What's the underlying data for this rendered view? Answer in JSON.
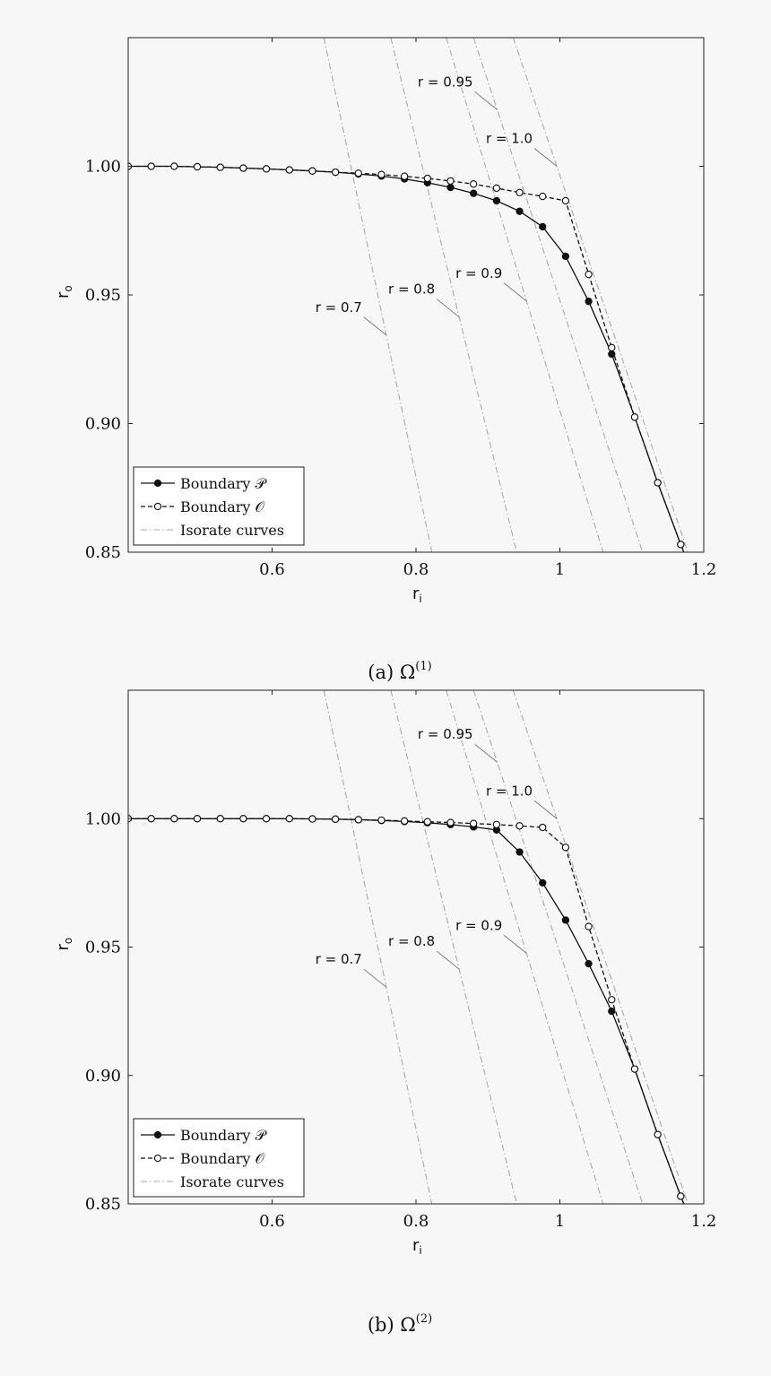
{
  "chart_data": [
    {
      "type": "line",
      "caption": "(a) Ω",
      "caption_sup": "(1)",
      "xlabel": "r",
      "xlabel_sub": "i",
      "ylabel": "r",
      "ylabel_sub": "o",
      "xlim": [
        0.4,
        1.2
      ],
      "ylim": [
        0.85,
        1.05
      ],
      "xticks": [
        {
          "v": 0.6,
          "label": "0.6"
        },
        {
          "v": 0.8,
          "label": "0.8"
        },
        {
          "v": 1.0,
          "label": "1"
        },
        {
          "v": 1.2,
          "label": "1.2"
        }
      ],
      "yticks": [
        {
          "v": 0.85,
          "label": "0.85"
        },
        {
          "v": 0.9,
          "label": "0.90"
        },
        {
          "v": 0.95,
          "label": "0.95"
        },
        {
          "v": 1.0,
          "label": "1.00"
        }
      ],
      "grid": false,
      "legend_position": "bottom-left",
      "series": [
        {
          "name": "Boundary 𝒫",
          "style": "solid-filled",
          "x": [
            0.4,
            0.432,
            0.464,
            0.496,
            0.528,
            0.56,
            0.592,
            0.624,
            0.656,
            0.688,
            0.72,
            0.752,
            0.784,
            0.816,
            0.848,
            0.88,
            0.912,
            0.944,
            0.976,
            1.008,
            1.04,
            1.072,
            1.104,
            1.136,
            1.168,
            1.176
          ],
          "y": [
            1.0,
            1.0,
            1.0,
            0.9998,
            0.9996,
            0.9993,
            0.999,
            0.9986,
            0.9982,
            0.9977,
            0.997,
            0.9962,
            0.9951,
            0.9936,
            0.9918,
            0.9895,
            0.9866,
            0.9825,
            0.9765,
            0.965,
            0.9475,
            0.927,
            0.9025,
            0.877,
            0.853,
            0.8475
          ]
        },
        {
          "name": "Boundary 𝒪",
          "style": "dashed-open",
          "x": [
            0.4,
            0.432,
            0.464,
            0.496,
            0.528,
            0.56,
            0.592,
            0.624,
            0.656,
            0.688,
            0.72,
            0.752,
            0.784,
            0.816,
            0.848,
            0.88,
            0.912,
            0.944,
            0.976,
            1.008,
            1.04,
            1.072,
            1.104,
            1.136,
            1.168,
            1.176
          ],
          "y": [
            1.0,
            1.0,
            1.0,
            0.9998,
            0.9996,
            0.9993,
            0.999,
            0.9986,
            0.9982,
            0.9977,
            0.9973,
            0.9968,
            0.9961,
            0.9953,
            0.9943,
            0.9931,
            0.9915,
            0.9898,
            0.9883,
            0.9866,
            0.958,
            0.9295,
            0.9025,
            0.877,
            0.853,
            0.8475
          ]
        }
      ],
      "isorate_legend": "Isorate curves",
      "isorates": [
        {
          "label": "r = 0.7",
          "x_top": 0.672,
          "x_bottom": 0.822
        },
        {
          "label": "r = 0.8",
          "x_top": 0.765,
          "x_bottom": 0.94
        },
        {
          "label": "r = 0.9",
          "x_top": 0.842,
          "x_bottom": 1.06
        },
        {
          "label": "r = 0.95",
          "x_top": 0.88,
          "x_bottom": 1.115
        },
        {
          "label": "r = 1.0",
          "x_top": 0.935,
          "x_bottom": 1.178
        }
      ]
    },
    {
      "type": "line",
      "caption": "(b) Ω",
      "caption_sup": "(2)",
      "xlabel": "r",
      "xlabel_sub": "i",
      "ylabel": "r",
      "ylabel_sub": "o",
      "xlim": [
        0.4,
        1.2
      ],
      "ylim": [
        0.85,
        1.05
      ],
      "xticks": [
        {
          "v": 0.6,
          "label": "0.6"
        },
        {
          "v": 0.8,
          "label": "0.8"
        },
        {
          "v": 1.0,
          "label": "1"
        },
        {
          "v": 1.2,
          "label": "1.2"
        }
      ],
      "yticks": [
        {
          "v": 0.85,
          "label": "0.85"
        },
        {
          "v": 0.9,
          "label": "0.90"
        },
        {
          "v": 0.95,
          "label": "0.95"
        },
        {
          "v": 1.0,
          "label": "1.00"
        }
      ],
      "grid": false,
      "legend_position": "bottom-left",
      "series": [
        {
          "name": "Boundary 𝒫",
          "style": "solid-filled",
          "x": [
            0.4,
            0.432,
            0.464,
            0.496,
            0.528,
            0.56,
            0.592,
            0.624,
            0.656,
            0.688,
            0.72,
            0.752,
            0.784,
            0.816,
            0.848,
            0.88,
            0.912,
            0.944,
            0.976,
            1.008,
            1.04,
            1.072,
            1.104,
            1.136,
            1.168,
            1.176
          ],
          "y": [
            1.0,
            1.0,
            1.0,
            1.0,
            1.0,
            1.0,
            1.0,
            1.0,
            0.9999,
            0.9998,
            0.9996,
            0.9993,
            0.9989,
            0.9984,
            0.9977,
            0.9968,
            0.9956,
            0.987,
            0.975,
            0.9605,
            0.9435,
            0.925,
            0.9025,
            0.877,
            0.853,
            0.8475
          ]
        },
        {
          "name": "Boundary 𝒪",
          "style": "dashed-open",
          "x": [
            0.4,
            0.432,
            0.464,
            0.496,
            0.528,
            0.56,
            0.592,
            0.624,
            0.656,
            0.688,
            0.72,
            0.752,
            0.784,
            0.816,
            0.848,
            0.88,
            0.912,
            0.944,
            0.976,
            1.008,
            1.04,
            1.072,
            1.104,
            1.136,
            1.168,
            1.176
          ],
          "y": [
            1.0,
            1.0,
            1.0,
            1.0,
            1.0,
            1.0,
            1.0,
            1.0,
            0.9999,
            0.9998,
            0.9996,
            0.9994,
            0.9991,
            0.9988,
            0.9985,
            0.9981,
            0.9977,
            0.9972,
            0.9966,
            0.9888,
            0.958,
            0.9295,
            0.9025,
            0.877,
            0.853,
            0.8475
          ]
        }
      ],
      "isorate_legend": "Isorate curves",
      "isorates": [
        {
          "label": "r = 0.7",
          "x_top": 0.672,
          "x_bottom": 0.822
        },
        {
          "label": "r = 0.8",
          "x_top": 0.765,
          "x_bottom": 0.94
        },
        {
          "label": "r = 0.9",
          "x_top": 0.842,
          "x_bottom": 1.06
        },
        {
          "label": "r = 0.95",
          "x_top": 0.88,
          "x_bottom": 1.115
        },
        {
          "label": "r = 1.0",
          "x_top": 0.935,
          "x_bottom": 1.178
        }
      ]
    }
  ]
}
